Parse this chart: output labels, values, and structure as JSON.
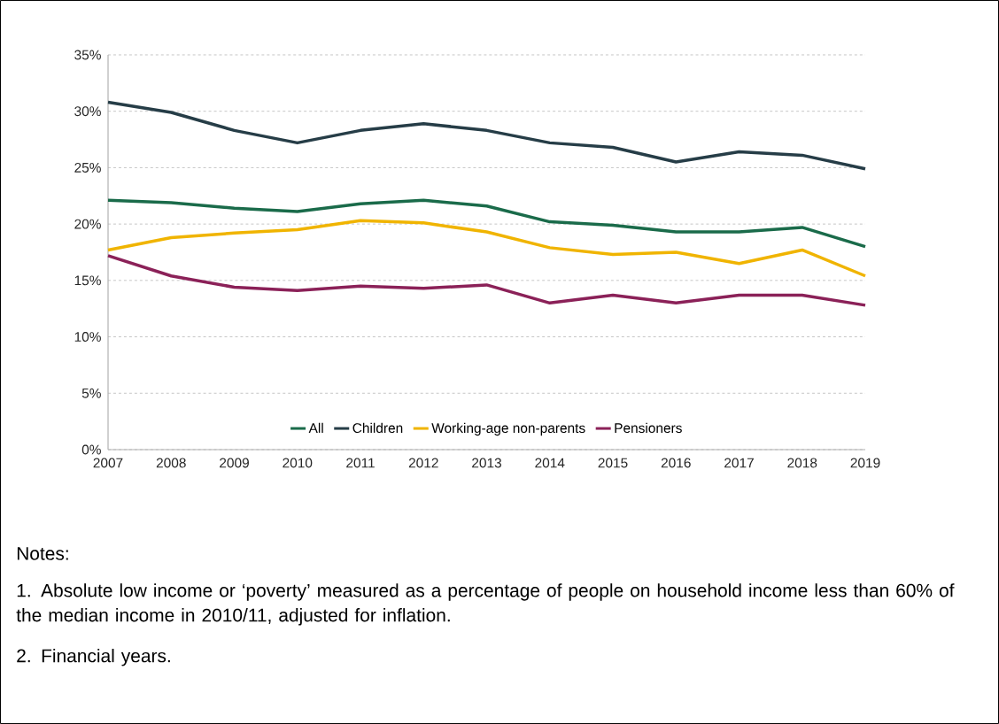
{
  "chart_data": {
    "type": "line",
    "x": [
      2007,
      2008,
      2009,
      2010,
      2011,
      2012,
      2013,
      2014,
      2015,
      2016,
      2017,
      2018,
      2019
    ],
    "series": [
      {
        "name": "All",
        "color": "#1a6b4a",
        "values": [
          22.1,
          21.9,
          21.4,
          21.1,
          21.8,
          22.1,
          21.6,
          20.2,
          19.9,
          19.3,
          19.3,
          19.7,
          18.0
        ]
      },
      {
        "name": "Children",
        "color": "#263d47",
        "values": [
          30.8,
          29.9,
          28.3,
          27.2,
          28.3,
          28.9,
          28.3,
          27.2,
          26.8,
          25.5,
          26.4,
          26.1,
          24.9
        ]
      },
      {
        "name": "Working-age non-parents",
        "color": "#f0b400",
        "values": [
          17.7,
          18.8,
          19.2,
          19.5,
          20.3,
          20.1,
          19.3,
          17.9,
          17.3,
          17.5,
          16.5,
          17.7,
          15.4
        ]
      },
      {
        "name": "Pensioners",
        "color": "#8b2158",
        "values": [
          17.2,
          15.4,
          14.4,
          14.1,
          14.5,
          14.3,
          14.6,
          13.0,
          13.7,
          13.0,
          13.7,
          13.7,
          12.8
        ]
      }
    ],
    "xlim": [
      2007,
      2019
    ],
    "xticks": [
      2007,
      2008,
      2009,
      2010,
      2011,
      2012,
      2013,
      2014,
      2015,
      2016,
      2017,
      2018,
      2019
    ],
    "ylim": [
      0,
      35
    ],
    "yticks": [
      {
        "value": 0,
        "label": "0%"
      },
      {
        "value": 5,
        "label": "5%"
      },
      {
        "value": 10,
        "label": "10%"
      },
      {
        "value": 15,
        "label": "15%"
      },
      {
        "value": 20,
        "label": "20%"
      },
      {
        "value": 25,
        "label": "25%"
      },
      {
        "value": 30,
        "label": "30%"
      },
      {
        "value": 35,
        "label": "35%"
      }
    ],
    "grid": "y",
    "legend": "bottom",
    "marker": "none",
    "line_style": "solid",
    "annotations": [
      "Notes:",
      "1. Absolute low income or ‘poverty’ measured as a percentage of people on household income less than 60% of the median income in 2010/11, adjusted for inflation.",
      "2. Financial years."
    ]
  }
}
